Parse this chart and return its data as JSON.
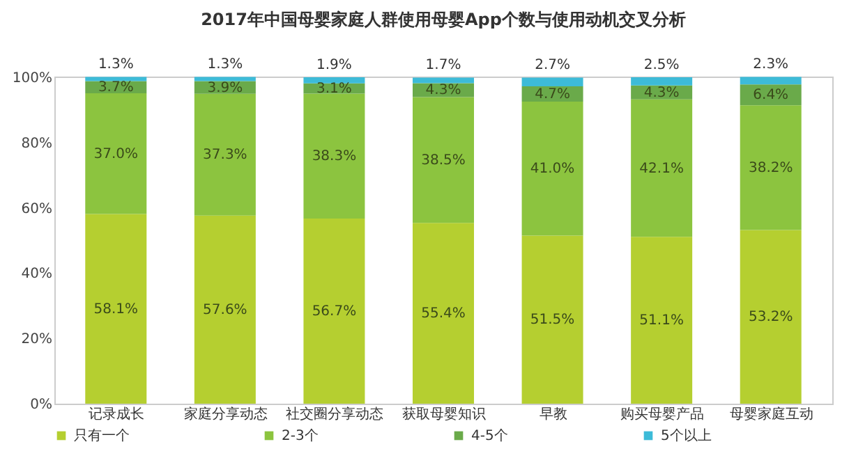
{
  "chart_data": {
    "type": "bar",
    "stacked": true,
    "title": "2017年中国母婴家庭人群使用母婴App个数与使用动机交叉分析",
    "categories": [
      "记录成长",
      "家庭分享动态",
      "社交圈分享动态",
      "获取母婴知识",
      "早教",
      "购买母婴产品",
      "母婴家庭互动"
    ],
    "series": [
      {
        "name": "只有一个",
        "color": "#b5cf30",
        "values": [
          58.1,
          57.6,
          56.7,
          55.4,
          51.5,
          51.1,
          53.2
        ],
        "value_labels": [
          "58.1%",
          "57.6%",
          "56.7%",
          "55.4%",
          "51.5%",
          "51.1%",
          "53.2%"
        ]
      },
      {
        "name": "2-3个",
        "color": "#8cc43f",
        "values": [
          37.0,
          37.3,
          38.3,
          38.5,
          41.0,
          42.1,
          38.2
        ],
        "value_labels": [
          "37.0%",
          "37.3%",
          "38.3%",
          "38.5%",
          "41.0%",
          "42.1%",
          "38.2%"
        ]
      },
      {
        "name": "4-5个",
        "color": "#6aaa4a",
        "values": [
          3.7,
          3.9,
          3.1,
          4.3,
          4.7,
          4.3,
          6.4
        ],
        "value_labels": [
          "3.7%",
          "3.9%",
          "3.1%",
          "4.3%",
          "4.7%",
          "4.3%",
          "6.4%"
        ]
      },
      {
        "name": "5个以上",
        "color": "#3dbbd8",
        "values": [
          1.3,
          1.3,
          1.9,
          1.7,
          2.7,
          2.5,
          2.3
        ],
        "value_labels": [
          "1.3%",
          "1.3%",
          "1.9%",
          "1.7%",
          "2.7%",
          "2.5%",
          "2.3%"
        ]
      }
    ],
    "ylim": [
      0,
      100.2
    ],
    "yticks": [
      {
        "value": 0,
        "label": "0%"
      },
      {
        "value": 20,
        "label": "20%"
      },
      {
        "value": 40,
        "label": "40%"
      },
      {
        "value": 60,
        "label": "60%"
      },
      {
        "value": 80,
        "label": "80%"
      },
      {
        "value": 100,
        "label": "100%"
      }
    ],
    "grid": false,
    "legend": "bottom"
  }
}
